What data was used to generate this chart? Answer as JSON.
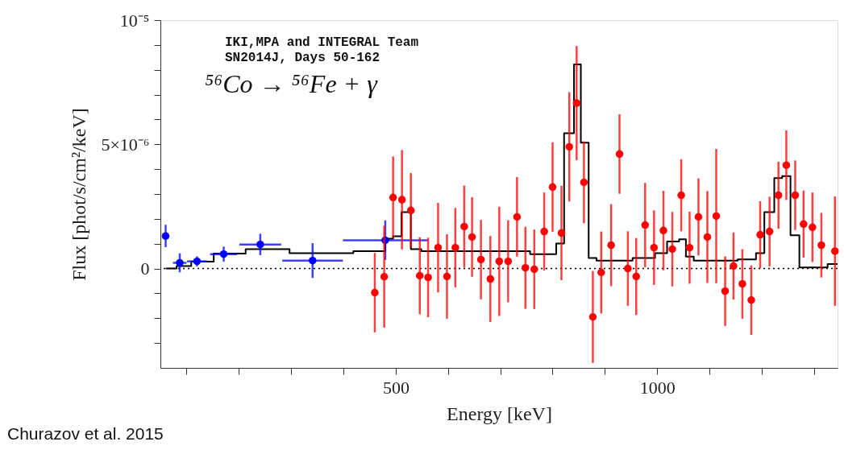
{
  "chart_data": {
    "type": "scatter",
    "xlabel": "Energy [keV]",
    "ylabel": "Flux [phot/s/cm²/keV]",
    "annotations": [
      "IKI,MPA and INTEGRAL Team",
      "SN2014J, Days 50-162",
      "⁵⁶Co → ⁵⁶Fe + γ",
      "Churazov et al. 2015"
    ],
    "xlim": [
      50,
      1345
    ],
    "ylim": [
      -4e-06,
      1e-05
    ],
    "xticks": [
      {
        "value": 100,
        "label": null
      },
      {
        "value": 200,
        "label": null
      },
      {
        "value": 300,
        "label": null
      },
      {
        "value": 400,
        "label": null
      },
      500,
      {
        "value": 600,
        "label": null
      },
      {
        "value": 700,
        "label": null
      },
      {
        "value": 800,
        "label": null
      },
      {
        "value": 900,
        "label": null
      },
      1000,
      {
        "value": 1100,
        "label": null
      },
      {
        "value": 1200,
        "label": null
      },
      {
        "value": 1300,
        "label": null
      }
    ],
    "yticks": [
      {
        "value": -3e-06,
        "label": null
      },
      {
        "value": -2e-06,
        "label": null
      },
      {
        "value": -1e-06,
        "label": null
      },
      {
        "value": 0,
        "label": "0"
      },
      {
        "value": 1e-06,
        "label": null
      },
      {
        "value": 2e-06,
        "label": null
      },
      {
        "value": 3e-06,
        "label": null
      },
      {
        "value": 4e-06,
        "label": null
      },
      {
        "value": 5e-06,
        "label": "5×10⁻⁶"
      },
      {
        "value": 6e-06,
        "label": null
      },
      {
        "value": 7e-06,
        "label": null
      },
      {
        "value": 8e-06,
        "label": null
      },
      {
        "value": 9e-06,
        "label": null
      },
      {
        "value": 1e-05,
        "label": "10⁻⁵"
      }
    ],
    "grid": false,
    "ref_lines": [
      {
        "axis": "y",
        "value": 0,
        "color": "#000000",
        "line_style": "dotted"
      }
    ],
    "series": [
      {
        "type": "step",
        "color": "#000000",
        "line_style": "solid",
        "marker": "none",
        "x": [
          60,
          81,
          109,
          152,
          213,
          297,
          419,
          480,
          495,
          511,
          529,
          549,
          666,
          757,
          807,
          822,
          841,
          854,
          869,
          884,
          953,
          996,
          1019,
          1042,
          1055,
          1070,
          1154,
          1189,
          1205,
          1224,
          1239,
          1255,
          1272,
          1326,
          1345
        ],
        "values": [
          0.0,
          1e-07,
          2.8e-07,
          6e-07,
          7.8e-07,
          6.2e-07,
          7e-07,
          1.2e-06,
          1.3e-06,
          2.27e-06,
          7.8e-07,
          7e-07,
          7e-07,
          5.8e-07,
          1.01e-06,
          5.45e-06,
          8.22e-06,
          5.07e-06,
          4.2e-07,
          3.2e-07,
          4.2e-07,
          6.2e-07,
          1.09e-06,
          1.18e-06,
          4.8e-07,
          3.2e-07,
          3.7e-07,
          6.2e-07,
          2.27e-06,
          3.64e-06,
          3.72e-06,
          1.34e-06,
          4e-08,
          1.8e-07,
          1.8e-07
        ]
      },
      {
        "marker": "circle",
        "color": "#0000ff",
        "x": [
          60,
          87,
          120,
          171,
          241,
          341,
          480
        ],
        "values": [
          1.31e-06,
          2.3e-07,
          2.9e-07,
          5.8e-07,
          9.7e-07,
          3.2e-07,
          1.14e-06
        ],
        "errors": [
          4.5e-07,
          3.8e-07,
          2e-07,
          3e-07,
          4.3e-07,
          7e-07,
          8e-07
        ],
        "xerrors": [
          null,
          13,
          19,
          26,
          40,
          58,
          81
        ]
      },
      {
        "marker": "circle",
        "color": "#ff0000",
        "x": [
          460,
          478,
          495,
          512,
          529,
          546,
          562,
          581,
          598,
          614,
          631,
          646,
          663,
          681,
          698,
          715,
          732,
          748,
          765,
          784,
          800,
          817,
          832,
          846,
          860,
          877,
          893,
          912,
          928,
          944,
          960,
          977,
          994,
          1012,
          1029,
          1046,
          1062,
          1079,
          1096,
          1113,
          1130,
          1146,
          1163,
          1180,
          1197,
          1215,
          1232,
          1247,
          1264,
          1280,
          1297,
          1314,
          1340
        ],
        "values": [
          -9.7e-07,
          -3.3e-07,
          2.86e-06,
          2.77e-06,
          2.34e-06,
          -2.9e-07,
          -3.6e-07,
          8.4e-07,
          -3.2e-07,
          8.4e-07,
          1.69e-06,
          1.27e-06,
          3.6e-07,
          -4.2e-07,
          2.9e-07,
          2.9e-07,
          2.08e-06,
          3e-08,
          -3e-08,
          1.49e-06,
          3.28e-06,
          1.43e-06,
          4.9e-06,
          6.66e-06,
          3.47e-06,
          -1.95e-06,
          -1.6e-07,
          9.4e-07,
          4.61e-06,
          0.0,
          -3.2e-07,
          1.75e-06,
          8.4e-07,
          1.53e-06,
          7.8e-07,
          2.95e-06,
          8.4e-07,
          2.08e-06,
          1.27e-06,
          2.11e-06,
          -9.1e-07,
          1e-07,
          -6.2e-07,
          -1.27e-06,
          1.36e-06,
          1.49e-06,
          2.95e-06,
          4.16e-06,
          2.95e-06,
          1.79e-06,
          1.66e-06,
          9.4e-07,
          7e-07
        ],
        "errors": [
          1.6e-06,
          2.05e-06,
          1.65e-06,
          2e-06,
          1.5e-06,
          1.55e-06,
          1.6e-06,
          1.8e-06,
          1.7e-06,
          1.6e-06,
          1.65e-06,
          1.6e-06,
          1.6e-06,
          1.73e-06,
          2.2e-06,
          1.65e-06,
          1.6e-06,
          1.65e-06,
          1.6e-06,
          1.57e-06,
          1.8e-06,
          1.9e-06,
          2.2e-06,
          2.3e-06,
          1.65e-06,
          1.85e-06,
          1.65e-06,
          1.65e-06,
          1.6e-06,
          1.5e-06,
          1.55e-06,
          1.7e-06,
          1.5e-06,
          1.6e-06,
          1.5e-06,
          1.45e-06,
          1.45e-06,
          1.55e-06,
          1.85e-06,
          2.7e-06,
          1.4e-06,
          1.35e-06,
          1.4e-06,
          1.4e-06,
          1.35e-06,
          1.4e-06,
          1.35e-06,
          1.4e-06,
          1.4e-06,
          1.35e-06,
          1.4e-06,
          1.3e-06,
          2.2e-06
        ]
      }
    ]
  }
}
